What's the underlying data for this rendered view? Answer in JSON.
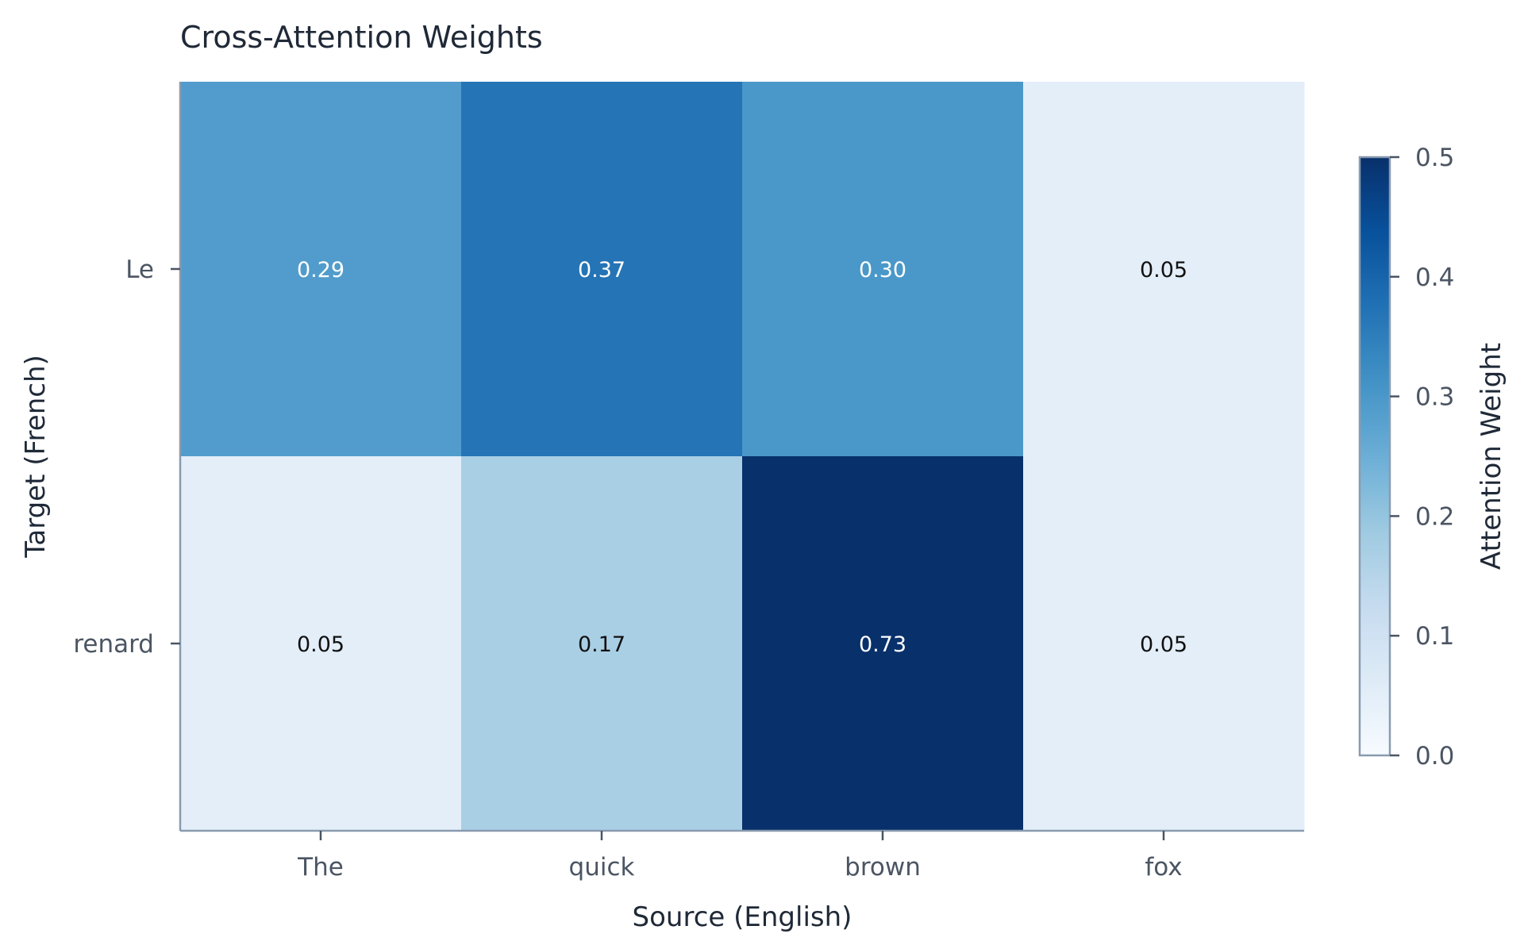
{
  "chart_data": {
    "type": "heatmap",
    "title": "Cross-Attention Weights",
    "xlabel": "Source (English)",
    "ylabel": "Target (French)",
    "x_categories": [
      "The",
      "quick",
      "brown",
      "fox"
    ],
    "y_categories": [
      "Le",
      "renard"
    ],
    "values": [
      [
        0.29,
        0.37,
        0.3,
        0.05
      ],
      [
        0.05,
        0.17,
        0.73,
        0.05
      ]
    ],
    "value_labels": [
      [
        "0.29",
        "0.37",
        "0.30",
        "0.05"
      ],
      [
        "0.05",
        "0.17",
        "0.73",
        "0.05"
      ]
    ],
    "colormap": "Blues",
    "color_range": [
      0.0,
      0.5
    ],
    "colorbar": {
      "label": "Attention Weight",
      "ticks": [
        0.0,
        0.1,
        0.2,
        0.3,
        0.4,
        0.5
      ],
      "tick_labels": [
        "0.0",
        "0.1",
        "0.2",
        "0.3",
        "0.4",
        "0.5"
      ],
      "placement": "right"
    },
    "grid": false
  }
}
